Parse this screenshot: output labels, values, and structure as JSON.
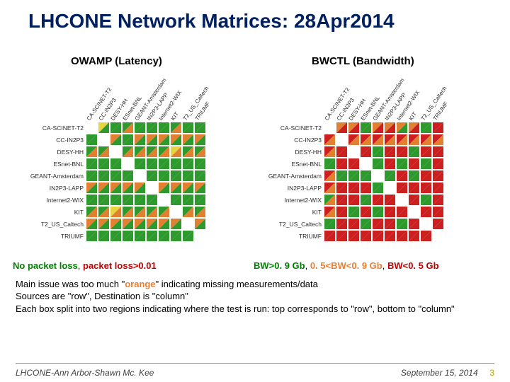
{
  "title": "LHCONE Network Matrices: 28Apr2014",
  "subtitle_left": "OWAMP  (Latency)",
  "subtitle_right": "BWCTL  (Bandwidth)",
  "colors": {
    "green": "#2e9a2e",
    "yellow": "#e6d540",
    "orange": "#e08030",
    "red": "#cc2020",
    "white": "#ffffff"
  },
  "nodes": [
    "CA-SCINET-T2",
    "CC-IN2P3",
    "DESY-HH",
    "ESnet-BNL",
    "GEANT-Amsterdam",
    "IN2P3-LAPP",
    "Internet2-WIX",
    "KIT",
    "T2_US_Caltech",
    "TRIUMF"
  ],
  "colLabelSpacing": 17,
  "matrix_left": [
    [
      "w",
      "y",
      "g",
      "g",
      "g",
      "g",
      "g",
      "g",
      "g",
      "g"
    ],
    [
      "g",
      "w",
      "o",
      "g",
      "o",
      "o",
      "o",
      "o",
      "o",
      "o"
    ],
    [
      "g",
      "g",
      "w",
      "g",
      "g",
      "g",
      "g",
      "y",
      "g",
      "g"
    ],
    [
      "g",
      "g",
      "g",
      "w",
      "g",
      "g",
      "g",
      "g",
      "g",
      "g"
    ],
    [
      "g",
      "g",
      "g",
      "g",
      "w",
      "g",
      "g",
      "g",
      "g",
      "g"
    ],
    [
      "o",
      "o",
      "o",
      "o",
      "o",
      "w",
      "o",
      "o",
      "o",
      "o"
    ],
    [
      "g",
      "g",
      "g",
      "g",
      "g",
      "g",
      "w",
      "g",
      "g",
      "g"
    ],
    [
      "g",
      "g",
      "y",
      "g",
      "g",
      "g",
      "g",
      "w",
      "g",
      "g"
    ],
    [
      "o",
      "o",
      "o",
      "o",
      "o",
      "o",
      "o",
      "o",
      "w",
      "o"
    ],
    [
      "g",
      "g",
      "g",
      "g",
      "g",
      "g",
      "g",
      "g",
      "g",
      "w"
    ]
  ],
  "matrix_left_bottom": [
    [
      "w",
      "g",
      "g",
      "o",
      "g",
      "g",
      "g",
      "o",
      "g",
      "g"
    ],
    [
      "g",
      "w",
      "g",
      "g",
      "g",
      "g",
      "g",
      "g",
      "g",
      "g"
    ],
    [
      "o",
      "o",
      "w",
      "o",
      "o",
      "o",
      "o",
      "o",
      "o",
      "o"
    ],
    [
      "g",
      "g",
      "g",
      "w",
      "g",
      "g",
      "g",
      "g",
      "g",
      "g"
    ],
    [
      "g",
      "g",
      "g",
      "g",
      "w",
      "g",
      "g",
      "g",
      "g",
      "g"
    ],
    [
      "g",
      "g",
      "g",
      "g",
      "g",
      "w",
      "g",
      "g",
      "g",
      "g"
    ],
    [
      "g",
      "g",
      "g",
      "g",
      "g",
      "g",
      "w",
      "g",
      "g",
      "g"
    ],
    [
      "o",
      "o",
      "o",
      "o",
      "o",
      "o",
      "o",
      "w",
      "o",
      "o"
    ],
    [
      "g",
      "g",
      "g",
      "g",
      "g",
      "g",
      "g",
      "g",
      "w",
      "g"
    ],
    [
      "g",
      "g",
      "g",
      "g",
      "g",
      "g",
      "g",
      "g",
      "g",
      "w"
    ]
  ],
  "matrix_right": [
    [
      "w",
      "o",
      "o",
      "g",
      "o",
      "o",
      "o",
      "o",
      "g",
      "r"
    ],
    [
      "r",
      "w",
      "r",
      "r",
      "r",
      "r",
      "r",
      "r",
      "r",
      "r"
    ],
    [
      "r",
      "r",
      "w",
      "r",
      "g",
      "r",
      "r",
      "g",
      "r",
      "r"
    ],
    [
      "g",
      "r",
      "r",
      "w",
      "g",
      "r",
      "g",
      "r",
      "g",
      "r"
    ],
    [
      "r",
      "g",
      "g",
      "g",
      "w",
      "g",
      "r",
      "g",
      "r",
      "r"
    ],
    [
      "r",
      "r",
      "r",
      "r",
      "g",
      "w",
      "r",
      "r",
      "r",
      "r"
    ],
    [
      "g",
      "r",
      "r",
      "g",
      "r",
      "r",
      "w",
      "r",
      "g",
      "r"
    ],
    [
      "r",
      "r",
      "g",
      "r",
      "g",
      "r",
      "r",
      "w",
      "r",
      "r"
    ],
    [
      "g",
      "r",
      "r",
      "g",
      "r",
      "r",
      "g",
      "r",
      "w",
      "r"
    ],
    [
      "r",
      "r",
      "r",
      "r",
      "r",
      "r",
      "r",
      "r",
      "r",
      "w"
    ]
  ],
  "matrix_right_bottom": [
    [
      "w",
      "r",
      "r",
      "g",
      "r",
      "r",
      "g",
      "r",
      "g",
      "r"
    ],
    [
      "o",
      "w",
      "o",
      "o",
      "o",
      "o",
      "o",
      "o",
      "o",
      "o"
    ],
    [
      "o",
      "r",
      "w",
      "r",
      "g",
      "r",
      "r",
      "g",
      "r",
      "r"
    ],
    [
      "g",
      "r",
      "r",
      "w",
      "g",
      "r",
      "g",
      "r",
      "g",
      "r"
    ],
    [
      "o",
      "g",
      "g",
      "g",
      "w",
      "g",
      "r",
      "g",
      "r",
      "r"
    ],
    [
      "o",
      "r",
      "r",
      "r",
      "g",
      "w",
      "r",
      "r",
      "r",
      "r"
    ],
    [
      "o",
      "r",
      "r",
      "g",
      "r",
      "r",
      "w",
      "r",
      "g",
      "r"
    ],
    [
      "o",
      "r",
      "g",
      "r",
      "g",
      "r",
      "r",
      "w",
      "r",
      "r"
    ],
    [
      "g",
      "r",
      "r",
      "g",
      "r",
      "r",
      "g",
      "r",
      "w",
      "r"
    ],
    [
      "r",
      "r",
      "r",
      "r",
      "r",
      "r",
      "r",
      "r",
      "r",
      "w"
    ]
  ],
  "legend_left_parts": [
    {
      "t": "No packet loss",
      "c": "g"
    },
    {
      "t": ", ",
      "c": ""
    },
    {
      "t": "packet loss>0.01",
      "c": "r"
    }
  ],
  "legend_right_parts": [
    {
      "t": "BW>0. 9 Gb",
      "c": "g"
    },
    {
      "t": ", ",
      "c": ""
    },
    {
      "t": "0. 5<BW<0. 9 Gb",
      "c": "o"
    },
    {
      "t": ", ",
      "c": ""
    },
    {
      "t": " BW<0. 5  Gb",
      "c": "r"
    }
  ],
  "bullets": [
    {
      "pre": "Main issue was too much \"",
      "orange": "orange",
      "post": "\"  indicating missing measurements/data"
    },
    {
      "pre": "Sources are \"row\", Destination is \"column\"",
      "orange": "",
      "post": ""
    },
    {
      "pre": "Each box split into two regions indicating where the test is run: top corresponds to \"row\", bottom to \"column\"",
      "orange": "",
      "post": ""
    }
  ],
  "footer_left": "LHCONE-Ann Arbor-Shawn Mc. Kee",
  "footer_date": "September 15, 2014",
  "footer_page": "3"
}
